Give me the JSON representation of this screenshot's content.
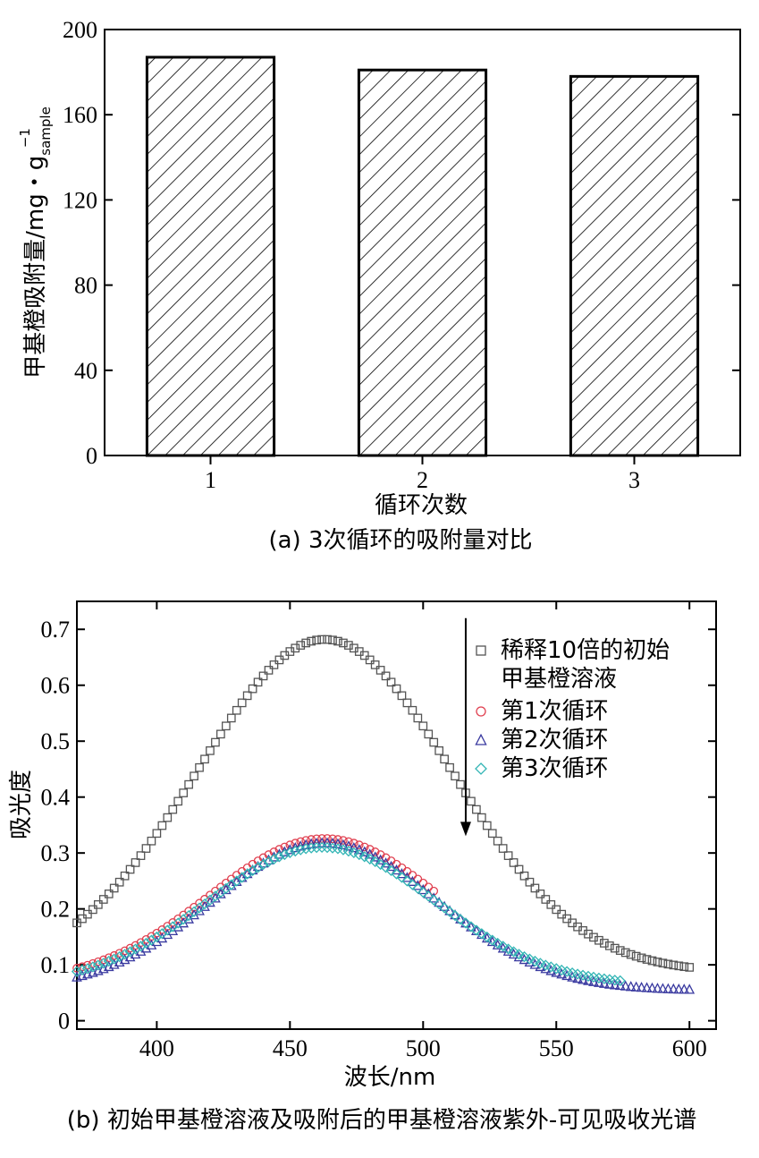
{
  "chart_data": [
    {
      "type": "bar",
      "categories": [
        "1",
        "2",
        "3"
      ],
      "values": [
        187,
        181,
        178
      ],
      "ylim": [
        0,
        200
      ],
      "yticks": [
        0,
        40,
        80,
        120,
        160,
        200
      ],
      "xlabel": "循环次数",
      "ylabel_main": "甲基橙吸附量/mg・g",
      "ylabel_sup": "−1",
      "ylabel_sub": "sample",
      "caption": "(a) 3次循环的吸附量对比",
      "grid": false,
      "bar_pattern": "diagonal-hatch"
    },
    {
      "type": "scatter",
      "xlabel": "波长/nm",
      "ylabel": "吸光度",
      "xlim": [
        370,
        610
      ],
      "ylim": [
        -0.015,
        0.75
      ],
      "xticks": [
        400,
        450,
        500,
        550,
        600
      ],
      "yticks": [
        0,
        0.1,
        0.2,
        0.3,
        0.4,
        0.5,
        0.6,
        0.7
      ],
      "ytick_labels": [
        "0",
        "0.1",
        "0.2",
        "0.3",
        "0.4",
        "0.5",
        "0.6",
        "0.7"
      ],
      "caption": "(b) 初始甲基橙溶液及吸附后的甲基橙溶液紫外-可见吸收光谱",
      "arrow": {
        "x": 516,
        "y_from": 0.72,
        "y_to": 0.33
      },
      "legend_position": "top-right",
      "series": [
        {
          "name": "稀释10倍的初始甲基橙溶液",
          "legend_lines": [
            "稀释10倍的初始",
            "甲基橙溶液"
          ],
          "marker": "square",
          "color": "#555555",
          "x_range": [
            370,
            600
          ],
          "peak": 463,
          "peak_value": 0.682,
          "value_at_370": 0.175,
          "sigma": 47.7
        },
        {
          "name": "第1次循环",
          "marker": "circle",
          "color": "#e04050",
          "x_range": [
            370,
            505
          ],
          "peak": 463,
          "peak_value": 0.326,
          "value_at_370": 0.094,
          "sigma": 42.9
        },
        {
          "name": "第2次循环",
          "marker": "triangle",
          "color": "#3a3aa0",
          "x_range": [
            370,
            600
          ],
          "peak": 463,
          "peak_value": 0.318,
          "value_at_370": 0.078,
          "sigma": 42.3
        },
        {
          "name": "第3次循环",
          "marker": "diamond",
          "color": "#33b5b5",
          "x_range": [
            370,
            575
          ],
          "peak": 462,
          "peak_value": 0.31,
          "value_at_370": 0.088,
          "sigma": 42.8
        }
      ]
    }
  ]
}
